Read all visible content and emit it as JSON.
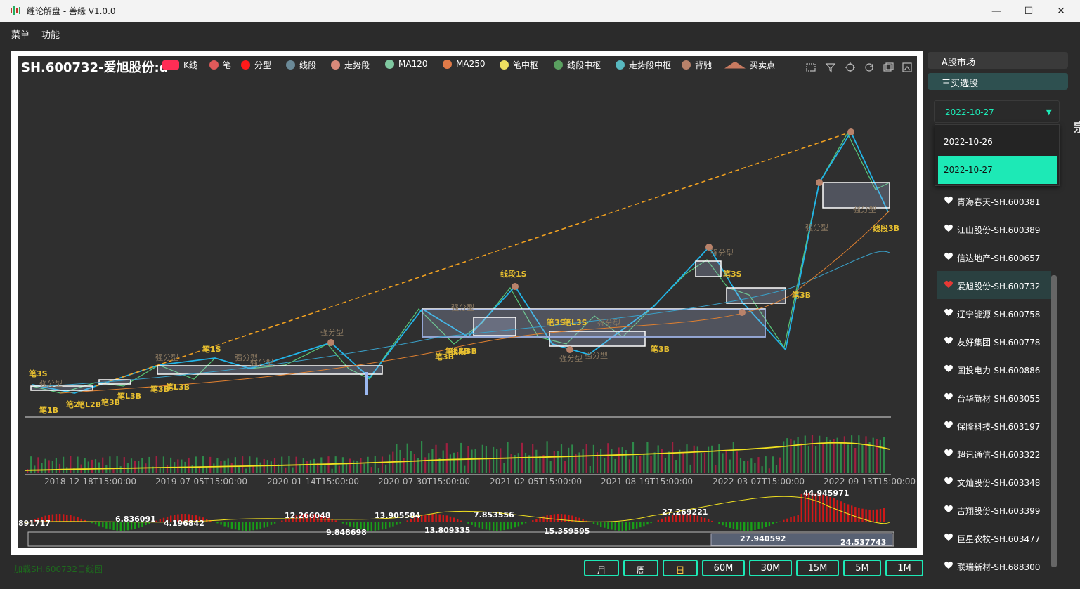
{
  "window": {
    "title": "缠论解盘 - 善缘 V1.0.0",
    "min": "—",
    "max": "☐",
    "close": "✕"
  },
  "menu": {
    "items": [
      "菜单",
      "功能"
    ]
  },
  "chart": {
    "title": "SH.600732-爱旭股份:d",
    "legend": [
      {
        "label": "K线",
        "color": "#ff2d55"
      },
      {
        "label": "笔",
        "color": "#e05a5a"
      },
      {
        "label": "分型",
        "color": "#ff1a1a"
      },
      {
        "label": "线段",
        "color": "#6b8a98"
      },
      {
        "label": "走势段",
        "color": "#d98a7a"
      },
      {
        "label": "MA120",
        "color": "#7fc8a0"
      },
      {
        "label": "MA250",
        "color": "#e07a48"
      },
      {
        "label": "笔中枢",
        "color": "#f0e060"
      },
      {
        "label": "线段中枢",
        "color": "#5aa060"
      },
      {
        "label": "走势段中枢",
        "color": "#58b8c0"
      },
      {
        "label": "背驰",
        "color": "#b8826a"
      },
      {
        "label": "买卖点",
        "color": "#c87a60"
      }
    ],
    "x_ticks": [
      "2018-12-18T15:00:00",
      "2019-07-05T15:00:00",
      "2020-01-14T15:00:00",
      "2020-07-30T15:00:00",
      "2021-02-05T15:00:00",
      "2021-08-19T15:00:00",
      "2022-03-07T15:00:00",
      "2022-09-13T15:00:00"
    ],
    "annotations": [
      "笔3S",
      "强分型",
      "笔1B",
      "笔2",
      "笔L2B",
      "笔3B",
      "笔L3B",
      "笔3B",
      "笔L3B",
      "强分型",
      "笔1S",
      "强分型",
      "强分型",
      "强分型",
      "笔3B",
      "笔L3B",
      "线段3B",
      "强分型",
      "线段1S",
      "笔3S",
      "笔L3S",
      "强分型",
      "强分型",
      "强分型",
      "笔3B",
      "强分型",
      "笔3S",
      "笔3B",
      "强分型",
      "线段3B",
      "强分型"
    ],
    "macd_labels": [
      "891717",
      "6.836091",
      "4.196842",
      "12.266048",
      "13.905584",
      "9.848698",
      "13.809335",
      "7.853556",
      "15.359595",
      "27.269221",
      "44.945971",
      "27.940592",
      "24.537743"
    ]
  },
  "sidebar": {
    "market_btn": "A股市场",
    "pick_btn": "三买选股",
    "selected_date": "2022-10-27",
    "date_options": [
      "2022-10-26",
      "2022-10-27"
    ],
    "stocks": [
      {
        "name": "青海春天-SH.600381",
        "fav": false
      },
      {
        "name": "江山股份-SH.600389",
        "fav": false
      },
      {
        "name": "信达地产-SH.600657",
        "fav": false
      },
      {
        "name": "爱旭股份-SH.600732",
        "fav": true
      },
      {
        "name": "辽宁能源-SH.600758",
        "fav": false
      },
      {
        "name": "友好集团-SH.600778",
        "fav": false
      },
      {
        "name": "国投电力-SH.600886",
        "fav": false
      },
      {
        "name": "台华新材-SH.603055",
        "fav": false
      },
      {
        "name": "保隆科技-SH.603197",
        "fav": false
      },
      {
        "name": "超讯通信-SH.603322",
        "fav": false
      },
      {
        "name": "文灿股份-SH.603348",
        "fav": false
      },
      {
        "name": "吉翔股份-SH.603399",
        "fav": false
      },
      {
        "name": "巨星农牧-SH.603477",
        "fav": false
      },
      {
        "name": "联瑞新材-SH.688300",
        "fav": false
      }
    ]
  },
  "periods": [
    {
      "label": "月",
      "active": false
    },
    {
      "label": "周",
      "active": false
    },
    {
      "label": "日",
      "active": true
    },
    {
      "label": "60M",
      "active": false
    },
    {
      "label": "30M",
      "active": false
    },
    {
      "label": "15M",
      "active": false
    },
    {
      "label": "5M",
      "active": false
    },
    {
      "label": "1M",
      "active": false
    }
  ],
  "status_text": "加载SH.600732日线图",
  "edge_glyph": "宗"
}
